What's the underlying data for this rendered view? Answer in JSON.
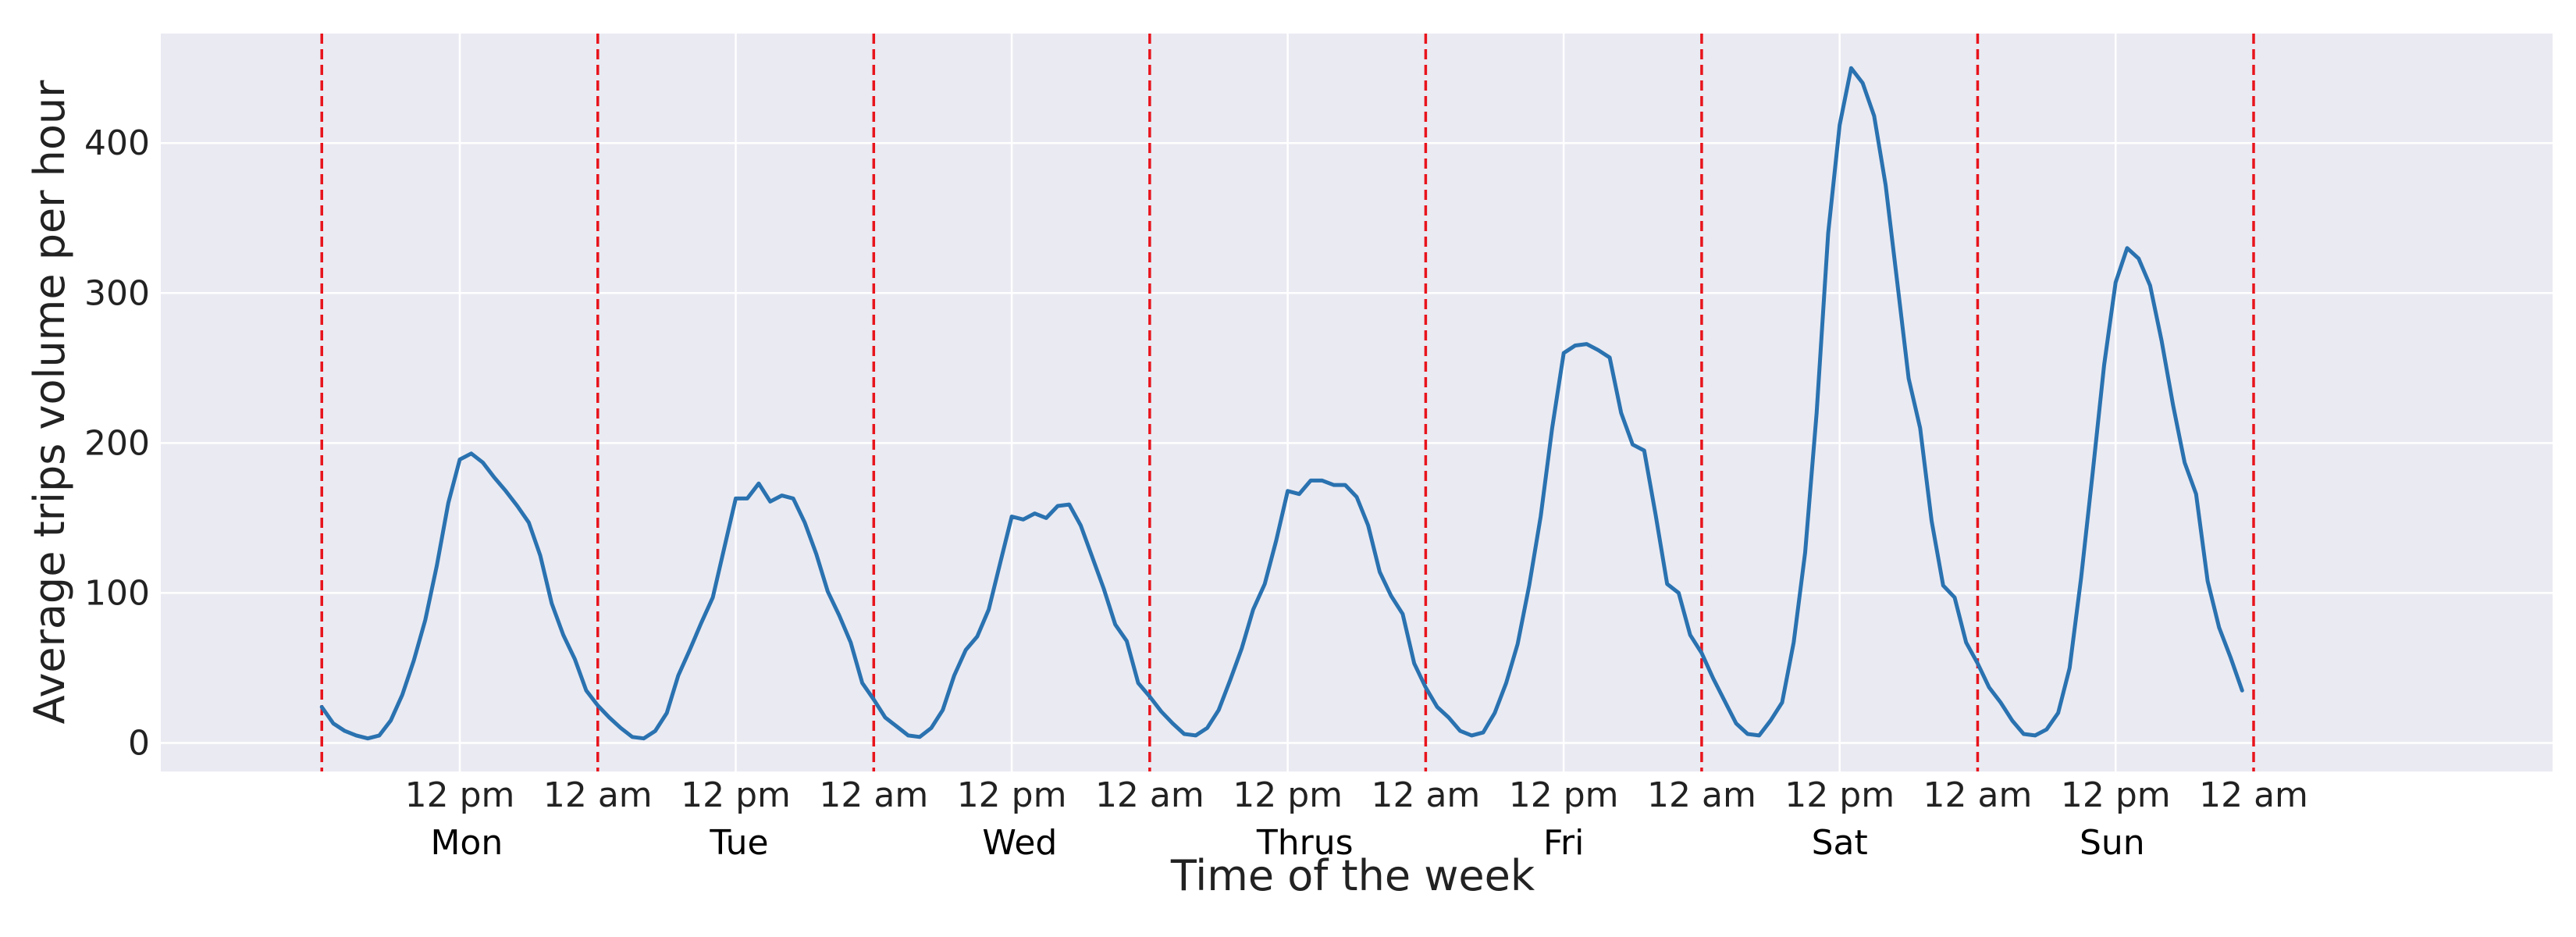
{
  "chart_data": {
    "type": "line",
    "title": "",
    "xlabel": "Time of the week",
    "ylabel": "Average trips volume per hour",
    "x_range_hours": [
      -14,
      194
    ],
    "ylim": [
      -19,
      473
    ],
    "grid": true,
    "y_ticks": [
      0,
      100,
      200,
      300,
      400
    ],
    "x_ticks": [
      {
        "hour": 12,
        "label": "12 pm"
      },
      {
        "hour": 24,
        "label": "12 am"
      },
      {
        "hour": 36,
        "label": "12 pm"
      },
      {
        "hour": 48,
        "label": "12 am"
      },
      {
        "hour": 60,
        "label": "12 pm"
      },
      {
        "hour": 72,
        "label": "12 am"
      },
      {
        "hour": 84,
        "label": "12 pm"
      },
      {
        "hour": 96,
        "label": "12 am"
      },
      {
        "hour": 108,
        "label": "12 pm"
      },
      {
        "hour": 120,
        "label": "12 am"
      },
      {
        "hour": 132,
        "label": "12 pm"
      },
      {
        "hour": 144,
        "label": "12 am"
      },
      {
        "hour": 156,
        "label": "12 pm"
      },
      {
        "hour": 168,
        "label": "12 am"
      }
    ],
    "day_labels": [
      {
        "hour": 12.6,
        "label": "Mon"
      },
      {
        "hour": 36.3,
        "label": "Tue"
      },
      {
        "hour": 60.7,
        "label": "Wed"
      },
      {
        "hour": 85.5,
        "label": "Thrus"
      },
      {
        "hour": 108,
        "label": "Fri"
      },
      {
        "hour": 132,
        "label": "Sat"
      },
      {
        "hour": 155.7,
        "label": "Sun"
      }
    ],
    "day_boundaries_hours": [
      0,
      24,
      48,
      72,
      96,
      120,
      144,
      168
    ],
    "series": [
      {
        "color": "#2a72b0",
        "x_start_hour": 0,
        "x_step_hours": 1,
        "values": [
          24,
          13,
          8,
          5,
          3,
          5,
          15,
          32,
          55,
          82,
          118,
          160,
          189,
          193,
          187,
          177,
          168,
          158,
          147,
          125,
          93,
          72,
          56,
          35,
          25,
          17,
          10,
          4,
          3,
          8,
          20,
          45,
          62,
          80,
          97,
          130,
          163,
          163,
          173,
          161,
          165,
          163,
          147,
          126,
          101,
          85,
          67,
          40,
          29,
          17,
          11,
          5,
          4,
          10,
          22,
          45,
          62,
          71,
          89,
          120,
          151,
          149,
          153,
          150,
          158,
          159,
          145,
          124,
          103,
          79,
          68,
          40,
          31,
          21,
          13,
          6,
          5,
          10,
          22,
          42,
          63,
          89,
          106,
          135,
          168,
          166,
          175,
          175,
          172,
          172,
          164,
          145,
          114,
          98,
          86,
          53,
          37,
          24,
          17,
          8,
          5,
          7,
          20,
          40,
          66,
          105,
          151,
          210,
          260,
          265,
          266,
          262,
          257,
          220,
          199,
          195,
          152,
          106,
          100,
          72,
          60,
          43,
          28,
          13,
          6,
          5,
          15,
          27,
          67,
          127,
          220,
          340,
          412,
          450,
          440,
          418,
          372,
          308,
          243,
          210,
          148,
          105,
          97,
          67,
          53,
          37,
          27,
          15,
          6,
          5,
          9,
          20,
          50,
          110,
          180,
          252,
          307,
          330,
          323,
          305,
          268,
          225,
          187,
          166,
          108,
          77,
          57,
          35
        ]
      }
    ]
  }
}
